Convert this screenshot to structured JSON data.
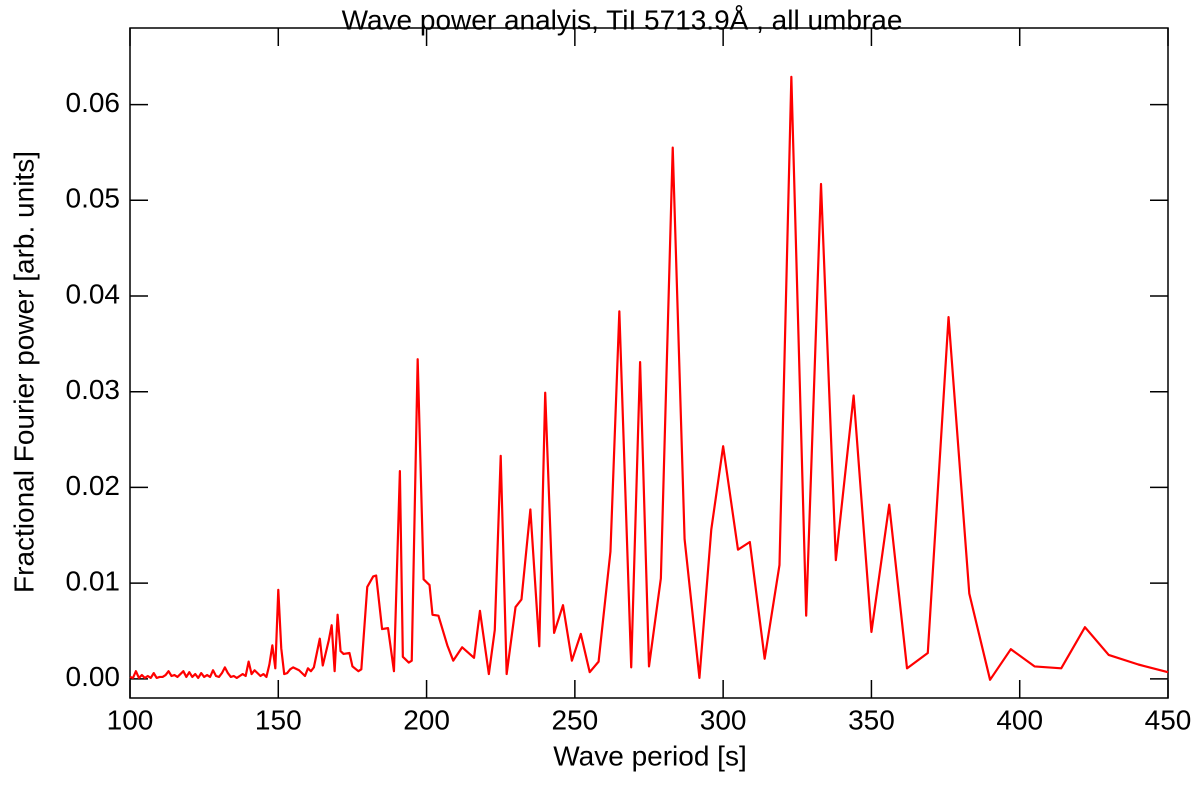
{
  "chart_data": {
    "type": "line",
    "title": "Wave power analyis, TiI 5713.9Å , all umbrae",
    "x_label": "Wave period [s]",
    "y_label": "Fractional Fourier power [arb. units]",
    "xlim": [
      100,
      450
    ],
    "xticks": [
      100,
      150,
      200,
      250,
      300,
      350,
      400,
      450
    ],
    "ylim": [
      -0.002,
      0.068
    ],
    "yticks": [
      {
        "value": 0,
        "label": "0.00"
      },
      0.01,
      0.02,
      0.03,
      0.04,
      0.05,
      0.06
    ],
    "x": [
      100,
      101,
      102,
      103,
      104,
      105,
      106,
      107,
      108,
      109,
      110,
      111,
      112,
      113,
      114,
      115,
      116,
      117,
      118,
      119,
      120,
      121,
      122,
      123,
      124,
      125,
      126,
      127,
      128,
      129,
      130,
      131,
      132,
      133,
      134,
      135,
      136,
      137,
      138,
      139,
      140,
      141,
      142,
      143,
      144,
      145,
      146,
      147,
      148,
      149,
      150,
      151,
      152,
      153,
      154,
      155,
      157,
      159,
      160,
      161,
      162,
      164,
      165,
      167,
      168,
      169,
      170,
      171,
      172,
      174,
      175,
      177,
      178,
      180,
      182,
      183,
      185,
      187,
      189,
      191,
      192,
      194,
      195,
      197,
      199,
      201,
      202,
      204,
      207,
      209,
      212,
      216,
      218,
      221,
      223,
      225,
      227,
      230,
      232,
      235,
      238,
      240,
      243,
      246,
      249,
      252,
      255,
      258,
      262,
      265,
      269,
      272,
      275,
      279,
      283,
      287,
      292,
      296,
      300,
      305,
      309,
      314,
      319,
      323,
      328,
      333,
      338,
      344,
      350,
      356,
      362,
      369,
      376,
      383,
      390,
      397,
      405,
      414,
      422,
      430,
      440,
      450
    ],
    "series": [
      {
        "name": "power",
        "color": "#ff0000",
        "values": [
          0.0002,
          0.0001,
          0.0008,
          0.0001,
          0.0004,
          0.0001,
          0.0003,
          0.0001,
          0.0006,
          0.0001,
          0.0002,
          0.0002,
          0.0004,
          0.0008,
          0.0003,
          0.0004,
          0.0002,
          0.0005,
          0.0008,
          0.0002,
          0.0007,
          0.0002,
          0.0005,
          0.0001,
          0.0006,
          0.0002,
          0.0004,
          0.0002,
          0.0009,
          0.0003,
          0.0002,
          0.0006,
          0.0012,
          0.0006,
          0.0002,
          0.0003,
          0.0001,
          0.0003,
          0.0005,
          0.0003,
          0.0018,
          0.0005,
          0.0009,
          0.0006,
          0.0003,
          0.0005,
          0.0002,
          0.0015,
          0.0035,
          0.0011,
          0.0093,
          0.0032,
          0.0005,
          0.0006,
          0.001,
          0.0012,
          0.0009,
          0.0003,
          0.0011,
          0.0008,
          0.0012,
          0.0042,
          0.0014,
          0.004,
          0.0056,
          0.0008,
          0.0067,
          0.0029,
          0.0026,
          0.0027,
          0.0013,
          0.0008,
          0.001,
          0.0096,
          0.0107,
          0.0108,
          0.0052,
          0.0053,
          0.0008,
          0.0217,
          0.0023,
          0.0017,
          0.0019,
          0.0334,
          0.0104,
          0.0098,
          0.0067,
          0.0066,
          0.0035,
          0.0019,
          0.0033,
          0.0022,
          0.0071,
          0.0005,
          0.0051,
          0.0233,
          0.0005,
          0.0075,
          0.0083,
          0.0177,
          0.0034,
          0.0299,
          0.0048,
          0.0077,
          0.0019,
          0.0047,
          0.0007,
          0.0018,
          0.0133,
          0.0384,
          0.0012,
          0.0331,
          0.0013,
          0.0105,
          0.0555,
          0.0146,
          0.0001,
          0.0156,
          0.0243,
          0.0135,
          0.0143,
          0.0021,
          0.0119,
          0.0629,
          0.0066,
          0.0517,
          0.0124,
          0.0296,
          0.0049,
          0.0182,
          0.0011,
          0.0027,
          0.0378,
          0.0089,
          -0.0001,
          0.0031,
          0.0013,
          0.0011,
          0.0054,
          0.0025,
          0.0015,
          0.0007
        ]
      }
    ]
  }
}
